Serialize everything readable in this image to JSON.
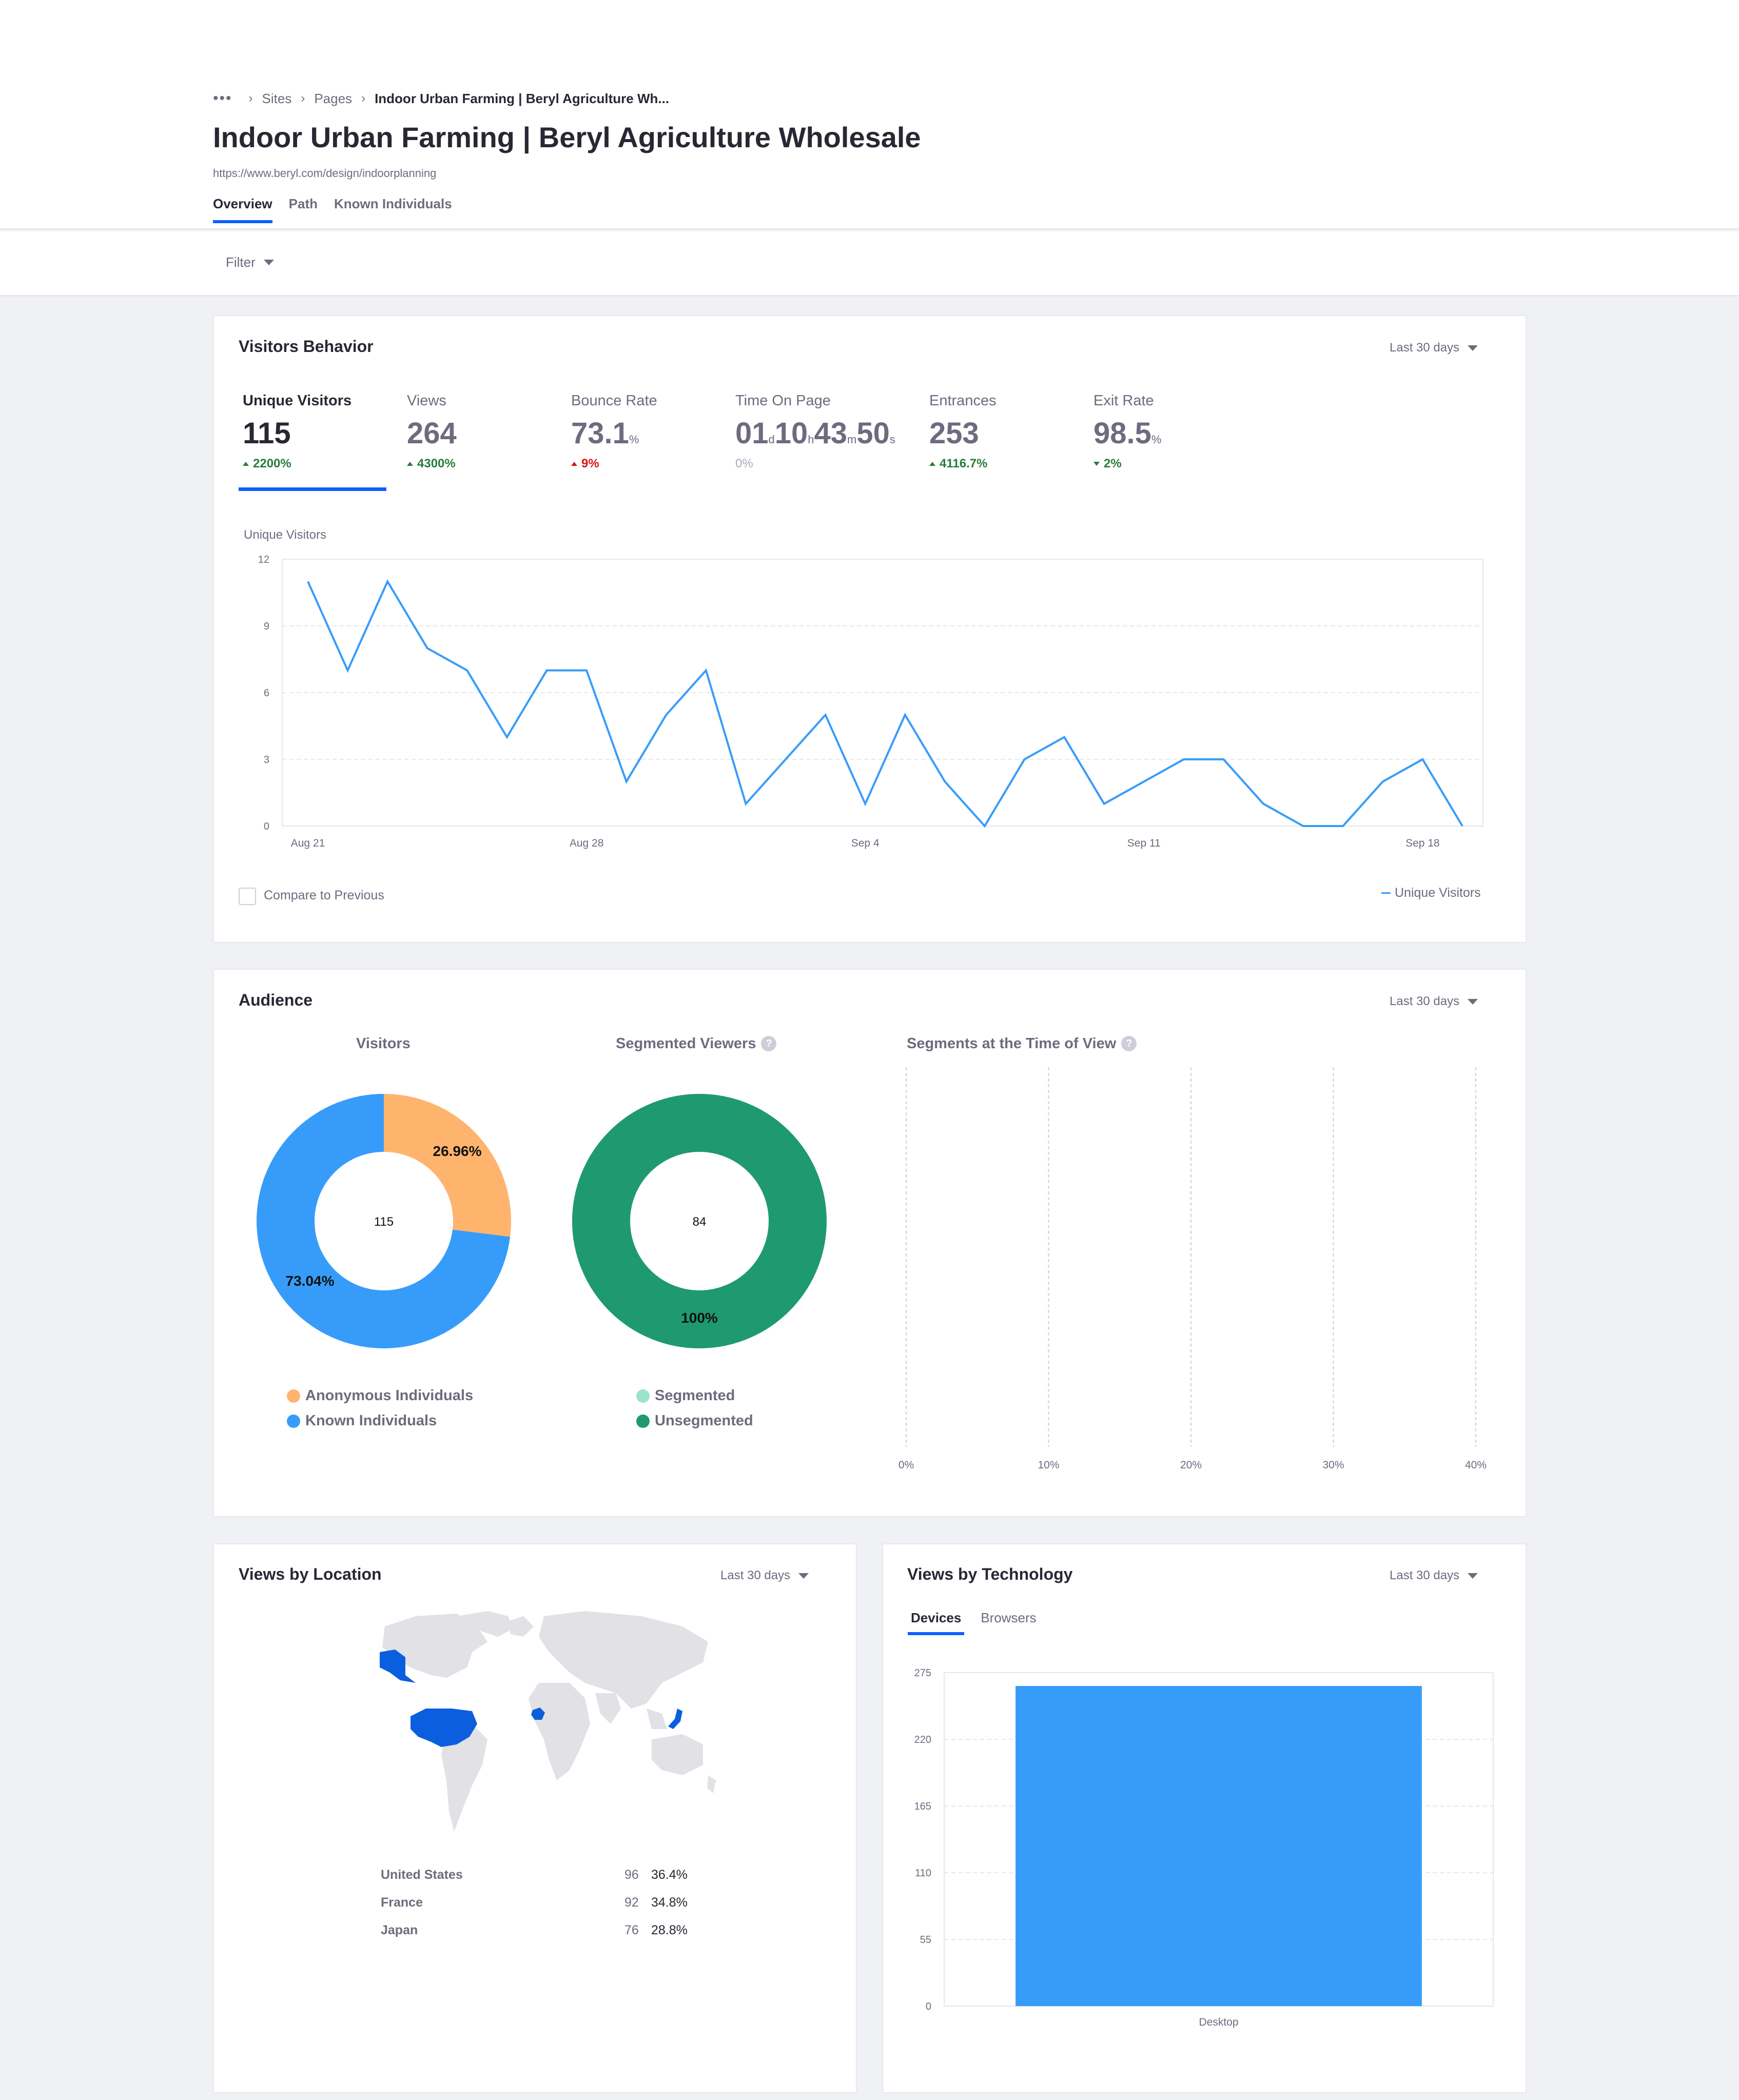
{
  "breadcrumb": {
    "more": "•••",
    "items": [
      "Sites",
      "Pages"
    ],
    "current": "Indoor Urban Farming | Beryl Agriculture Wh..."
  },
  "page": {
    "title": "Indoor Urban Farming | Beryl Agriculture Wholesale",
    "url": "https://www.beryl.com/design/indoorplanning"
  },
  "tabs": [
    {
      "label": "Overview",
      "active": true
    },
    {
      "label": "Path",
      "active": false
    },
    {
      "label": "Known Individuals",
      "active": false
    }
  ],
  "filter": {
    "label": "Filter"
  },
  "visitors_behavior": {
    "title": "Visitors Behavior",
    "range": "Last 30 days",
    "metrics": [
      {
        "label": "Unique Visitors",
        "value": "115",
        "unit": "",
        "change": "2200%",
        "direction": "up"
      },
      {
        "label": "Views",
        "value": "264",
        "unit": "",
        "change": "4300%",
        "direction": "up"
      },
      {
        "label": "Bounce Rate",
        "value": "73.1",
        "unit": "%",
        "change": "9%",
        "direction": "up-bad"
      },
      {
        "label": "Time On Page",
        "value": "01d10h43m50s",
        "unit": "",
        "change": "0%",
        "direction": "none"
      },
      {
        "label": "Entrances",
        "value": "253",
        "unit": "",
        "change": "4116.7%",
        "direction": "up"
      },
      {
        "label": "Exit Rate",
        "value": "98.5",
        "unit": "%",
        "change": "2%",
        "direction": "down-good"
      }
    ],
    "time_parts": [
      {
        "num": "01",
        "unit": "d"
      },
      {
        "num": "10",
        "unit": "h"
      },
      {
        "num": "43",
        "unit": "m"
      },
      {
        "num": "50",
        "unit": "s"
      }
    ],
    "compare_label": "Compare to Previous",
    "legend_label": "Unique Visitors"
  },
  "audience": {
    "title": "Audience",
    "range": "Last 30 days",
    "visitors_title": "Visitors",
    "visitors_total": "115",
    "segmented_title": "Segmented Viewers",
    "segmented_total": "84",
    "segments_time_title": "Segments at the Time of View",
    "segments_time_axis": [
      "0%",
      "10%",
      "20%",
      "30%",
      "40%"
    ],
    "visitors_legend": [
      {
        "label": "Anonymous Individuals",
        "color": "#ffb46e"
      },
      {
        "label": "Known Individuals",
        "color": "#379cf9"
      }
    ],
    "segmented_legend": [
      {
        "label": "Segmented",
        "color": "#9ce3ce"
      },
      {
        "label": "Unsegmented",
        "color": "#1f9970"
      }
    ],
    "help_icon": "?"
  },
  "location": {
    "title": "Views by Location",
    "range": "Last 30 days",
    "rows": [
      {
        "country": "United States",
        "count": "96",
        "pct": "36.4%"
      },
      {
        "country": "France",
        "count": "92",
        "pct": "34.8%"
      },
      {
        "country": "Japan",
        "count": "76",
        "pct": "28.8%"
      }
    ],
    "highlight_color": "#0b5fde"
  },
  "technology": {
    "title": "Views by Technology",
    "range": "Last 30 days",
    "tabs": [
      {
        "label": "Devices",
        "active": true
      },
      {
        "label": "Browsers",
        "active": false
      }
    ]
  },
  "chart_data": [
    {
      "type": "line",
      "ylabel": "Unique Visitors",
      "x": [
        "Aug 21",
        "Aug 22",
        "Aug 23",
        "Aug 24",
        "Aug 25",
        "Aug 26",
        "Aug 27",
        "Aug 28",
        "Aug 29",
        "Aug 30",
        "Aug 31",
        "Sep 1",
        "Sep 2",
        "Sep 3",
        "Sep 4",
        "Sep 5",
        "Sep 6",
        "Sep 7",
        "Sep 8",
        "Sep 9",
        "Sep 10",
        "Sep 11",
        "Sep 12",
        "Sep 13",
        "Sep 14",
        "Sep 15",
        "Sep 16",
        "Sep 17",
        "Sep 18",
        "Sep 19"
      ],
      "x_ticks": [
        "Aug 21",
        "Aug 28",
        "Sep 4",
        "Sep 11",
        "Sep 18"
      ],
      "series": [
        {
          "name": "Unique Visitors",
          "color": "#379cf9",
          "values": [
            11,
            7,
            11,
            8,
            7,
            4,
            7,
            7,
            2,
            5,
            7,
            1,
            3,
            5,
            1,
            5,
            2,
            0,
            3,
            4,
            1,
            2,
            3,
            3,
            1,
            0,
            0,
            2,
            3,
            0
          ]
        }
      ],
      "yticks": [
        0,
        3,
        6,
        9,
        12
      ],
      "ylim": [
        0,
        12
      ],
      "grid": true
    },
    {
      "type": "pie",
      "title": "Visitors",
      "slices": [
        {
          "name": "Anonymous Individuals",
          "value": 26.96,
          "label": "26.96%",
          "color": "#ffb46e"
        },
        {
          "name": "Known Individuals",
          "value": 73.04,
          "label": "73.04%",
          "color": "#379cf9"
        }
      ]
    },
    {
      "type": "pie",
      "title": "Segmented Viewers",
      "slices": [
        {
          "name": "Unsegmented",
          "value": 100,
          "label": "100%",
          "color": "#1f9970"
        }
      ]
    },
    {
      "type": "bar",
      "title": "Devices",
      "categories": [
        "Desktop"
      ],
      "values": [
        264
      ],
      "yticks": [
        0,
        55,
        110,
        165,
        220,
        275
      ],
      "ylim": [
        0,
        275
      ],
      "color": "#379cf9",
      "grid": true
    }
  ]
}
